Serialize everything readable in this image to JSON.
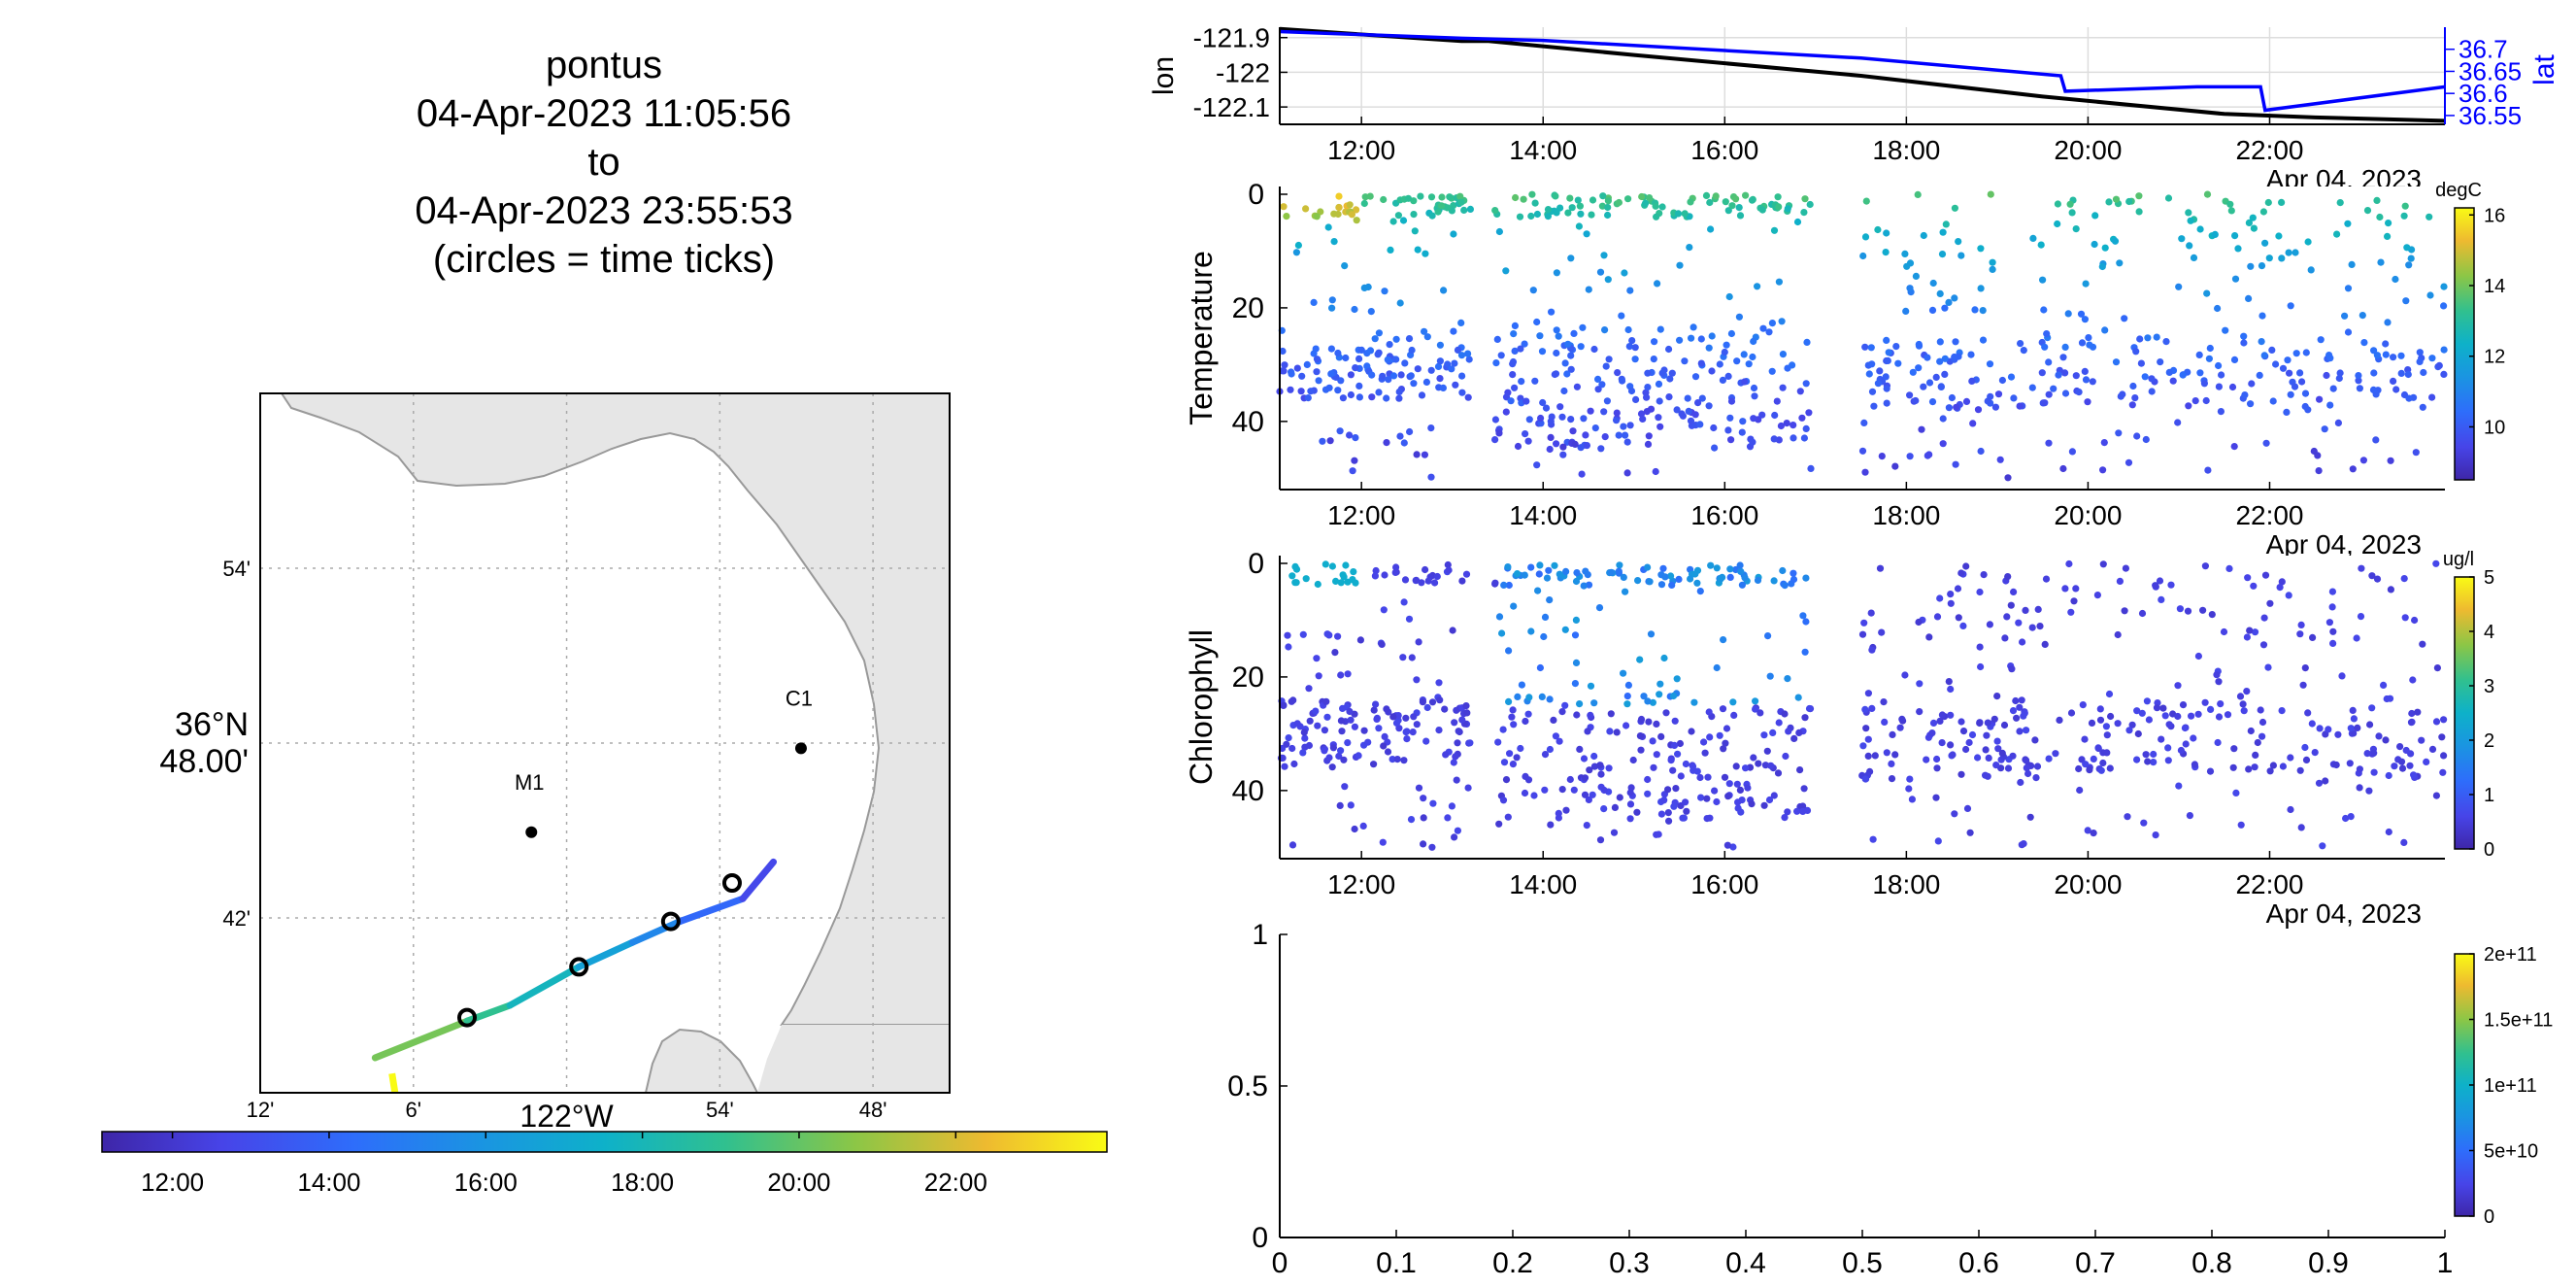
{
  "map_title": {
    "vehicle": "pontus",
    "start": "04-Apr-2023 11:05:56",
    "to": "to",
    "end": "04-Apr-2023 23:55:53",
    "note": "(circles = time ticks)"
  },
  "map": {
    "lat_ticks": [
      "54'",
      "36°N 48.00'",
      "42'"
    ],
    "lat_tick_values": [
      36.9,
      36.8,
      36.7
    ],
    "lon_ticks": [
      "12'",
      "6'",
      "122°W",
      "54'",
      "48'"
    ],
    "lon_tick_values": [
      -122.2,
      -122.1,
      -122.0,
      -121.9,
      -121.8
    ],
    "lat_range": [
      36.6,
      37.0
    ],
    "lon_range": [
      -122.2,
      -121.75
    ],
    "stations": [
      {
        "name": "M1",
        "lat": 36.749,
        "lon": -122.023
      },
      {
        "name": "C1",
        "lat": 36.797,
        "lon": -121.847
      }
    ],
    "track": [
      {
        "lat": 36.62,
        "lon": -122.125
      },
      {
        "lat": 36.641,
        "lon": -122.065
      },
      {
        "lat": 36.65,
        "lon": -122.037
      },
      {
        "lat": 36.672,
        "lon": -121.992
      },
      {
        "lat": 36.686,
        "lon": -121.957
      },
      {
        "lat": 36.698,
        "lon": -121.926
      },
      {
        "lat": 36.711,
        "lon": -121.885
      },
      {
        "lat": 36.732,
        "lon": -121.865
      }
    ],
    "time_ticks": [
      {
        "lat": 36.643,
        "lon": -122.065
      },
      {
        "lat": 36.672,
        "lon": -121.992
      },
      {
        "lat": 36.698,
        "lon": -121.932
      },
      {
        "lat": 36.72,
        "lon": -121.892
      }
    ],
    "colors": {
      "land": "#e6e6e6",
      "coast": "#999999",
      "station": "#000000"
    }
  },
  "time_colorbar": {
    "ticks": [
      "12:00",
      "14:00",
      "16:00",
      "18:00",
      "20:00",
      "22:00"
    ],
    "tick_hours": [
      12,
      14,
      16,
      18,
      20,
      22
    ],
    "range_hours": [
      11.1,
      23.93
    ]
  },
  "chart_data": [
    {
      "type": "line",
      "ylabel": "lon",
      "y2label": "lat",
      "xlabel": "Apr 04, 2023",
      "x_ticks": [
        "12:00",
        "14:00",
        "16:00",
        "18:00",
        "20:00",
        "22:00"
      ],
      "x_tick_hours": [
        12,
        14,
        16,
        18,
        20,
        22
      ],
      "xlim": [
        11.1,
        23.93
      ],
      "ylim": [
        -122.15,
        -121.87
      ],
      "y_ticks": [
        "-121.9",
        "-122",
        "-122.1"
      ],
      "y_tick_values": [
        -121.9,
        -122.0,
        -122.1
      ],
      "y2lim": [
        36.53,
        36.75
      ],
      "y2_ticks": [
        "36.7",
        "36.65",
        "36.6",
        "36.55"
      ],
      "y2_tick_values": [
        36.7,
        36.65,
        36.6,
        36.55
      ],
      "grid": true,
      "series": [
        {
          "name": "lon",
          "color": "#000000",
          "x": [
            11.1,
            13.1,
            13.4,
            15.0,
            17.5,
            19.5,
            21.5,
            22.5,
            23.93
          ],
          "y": [
            -121.875,
            -121.91,
            -121.91,
            -121.95,
            -122.01,
            -122.07,
            -122.12,
            -122.13,
            -122.14
          ]
        },
        {
          "name": "lat",
          "color": "#0000ff",
          "x": [
            11.1,
            13.1,
            14.0,
            17.5,
            19.7,
            19.75,
            21.2,
            21.9,
            21.95,
            23.93
          ],
          "y": [
            36.74,
            36.725,
            36.72,
            36.68,
            36.64,
            36.605,
            36.615,
            36.615,
            36.562,
            36.615
          ]
        }
      ]
    },
    {
      "type": "scatter",
      "ylabel": "Temperature",
      "xlabel": "Apr 04, 2023",
      "unit": "degC",
      "x_ticks": [
        "12:00",
        "14:00",
        "16:00",
        "18:00",
        "20:00",
        "22:00"
      ],
      "x_tick_hours": [
        12,
        14,
        16,
        18,
        20,
        22
      ],
      "xlim": [
        11.1,
        23.93
      ],
      "ylim": [
        0,
        52
      ],
      "y_ticks": [
        "0",
        "20",
        "40"
      ],
      "y_tick_values": [
        0,
        20,
        40
      ],
      "colorbar": {
        "range": [
          8.5,
          16.2
        ],
        "ticks": [
          "16",
          "14",
          "12",
          "10"
        ],
        "tick_values": [
          16,
          14,
          12,
          10
        ]
      },
      "segments": [
        {
          "start": 11.1,
          "end": 13.2,
          "n": 200,
          "deep_min": 24,
          "deep_max": 36,
          "shallow_max": 4
        },
        {
          "start": 13.45,
          "end": 16.95,
          "n": 330,
          "deep_min": 23,
          "deep_max": 45,
          "shallow_max": 4
        },
        {
          "start": 17.5,
          "end": 23.93,
          "n": 380,
          "deep_min": 25,
          "deep_max": 38,
          "shallow_max": 14
        }
      ],
      "value_model": {
        "surface": 13.5,
        "deep": 9.0,
        "scale_depth": 22
      }
    },
    {
      "type": "scatter",
      "ylabel": "Chlorophyll",
      "xlabel": "Apr 04, 2023",
      "unit": "ug/l",
      "x_ticks": [
        "12:00",
        "14:00",
        "16:00",
        "18:00",
        "20:00",
        "22:00"
      ],
      "x_tick_hours": [
        12,
        14,
        16,
        18,
        20,
        22
      ],
      "xlim": [
        11.1,
        23.93
      ],
      "ylim": [
        0,
        52
      ],
      "y_ticks": [
        "0",
        "20",
        "40"
      ],
      "y_tick_values": [
        0,
        20,
        40
      ],
      "colorbar": {
        "range": [
          0,
          5
        ],
        "ticks": [
          "5",
          "4",
          "3",
          "2",
          "1",
          "0"
        ],
        "tick_values": [
          5,
          4,
          3,
          2,
          1,
          0
        ]
      },
      "segments": [
        {
          "start": 11.1,
          "end": 13.2,
          "n": 200,
          "deep_min": 24,
          "deep_max": 36,
          "shallow_max": 4
        },
        {
          "start": 13.45,
          "end": 16.95,
          "n": 330,
          "deep_min": 23,
          "deep_max": 45,
          "shallow_max": 4
        },
        {
          "start": 17.5,
          "end": 23.93,
          "n": 380,
          "deep_min": 25,
          "deep_max": 38,
          "shallow_max": 14
        }
      ],
      "value_model": {
        "bloom_start": 13.5,
        "bloom_end": 17.0,
        "bloom_depth_max": 25,
        "bloom_value": 1.9,
        "base_value": 0.4
      }
    },
    {
      "type": "scatter",
      "xlim": [
        0,
        1
      ],
      "ylim": [
        0,
        1
      ],
      "x_ticks": [
        "0",
        "0.1",
        "0.2",
        "0.3",
        "0.4",
        "0.5",
        "0.6",
        "0.7",
        "0.8",
        "0.9",
        "1"
      ],
      "x_tick_values": [
        0,
        0.1,
        0.2,
        0.3,
        0.4,
        0.5,
        0.6,
        0.7,
        0.8,
        0.9,
        1
      ],
      "y_ticks": [
        "0",
        "0.5",
        "1"
      ],
      "y_tick_values": [
        0,
        0.5,
        1
      ],
      "colorbar": {
        "range": [
          0,
          200000000000.0
        ],
        "ticks": [
          "2e+11",
          "1.5e+11",
          "1e+11",
          "5e+10",
          "0"
        ],
        "tick_values": [
          200000000000.0,
          150000000000.0,
          100000000000.0,
          50000000000.0,
          0
        ]
      },
      "points": []
    }
  ]
}
